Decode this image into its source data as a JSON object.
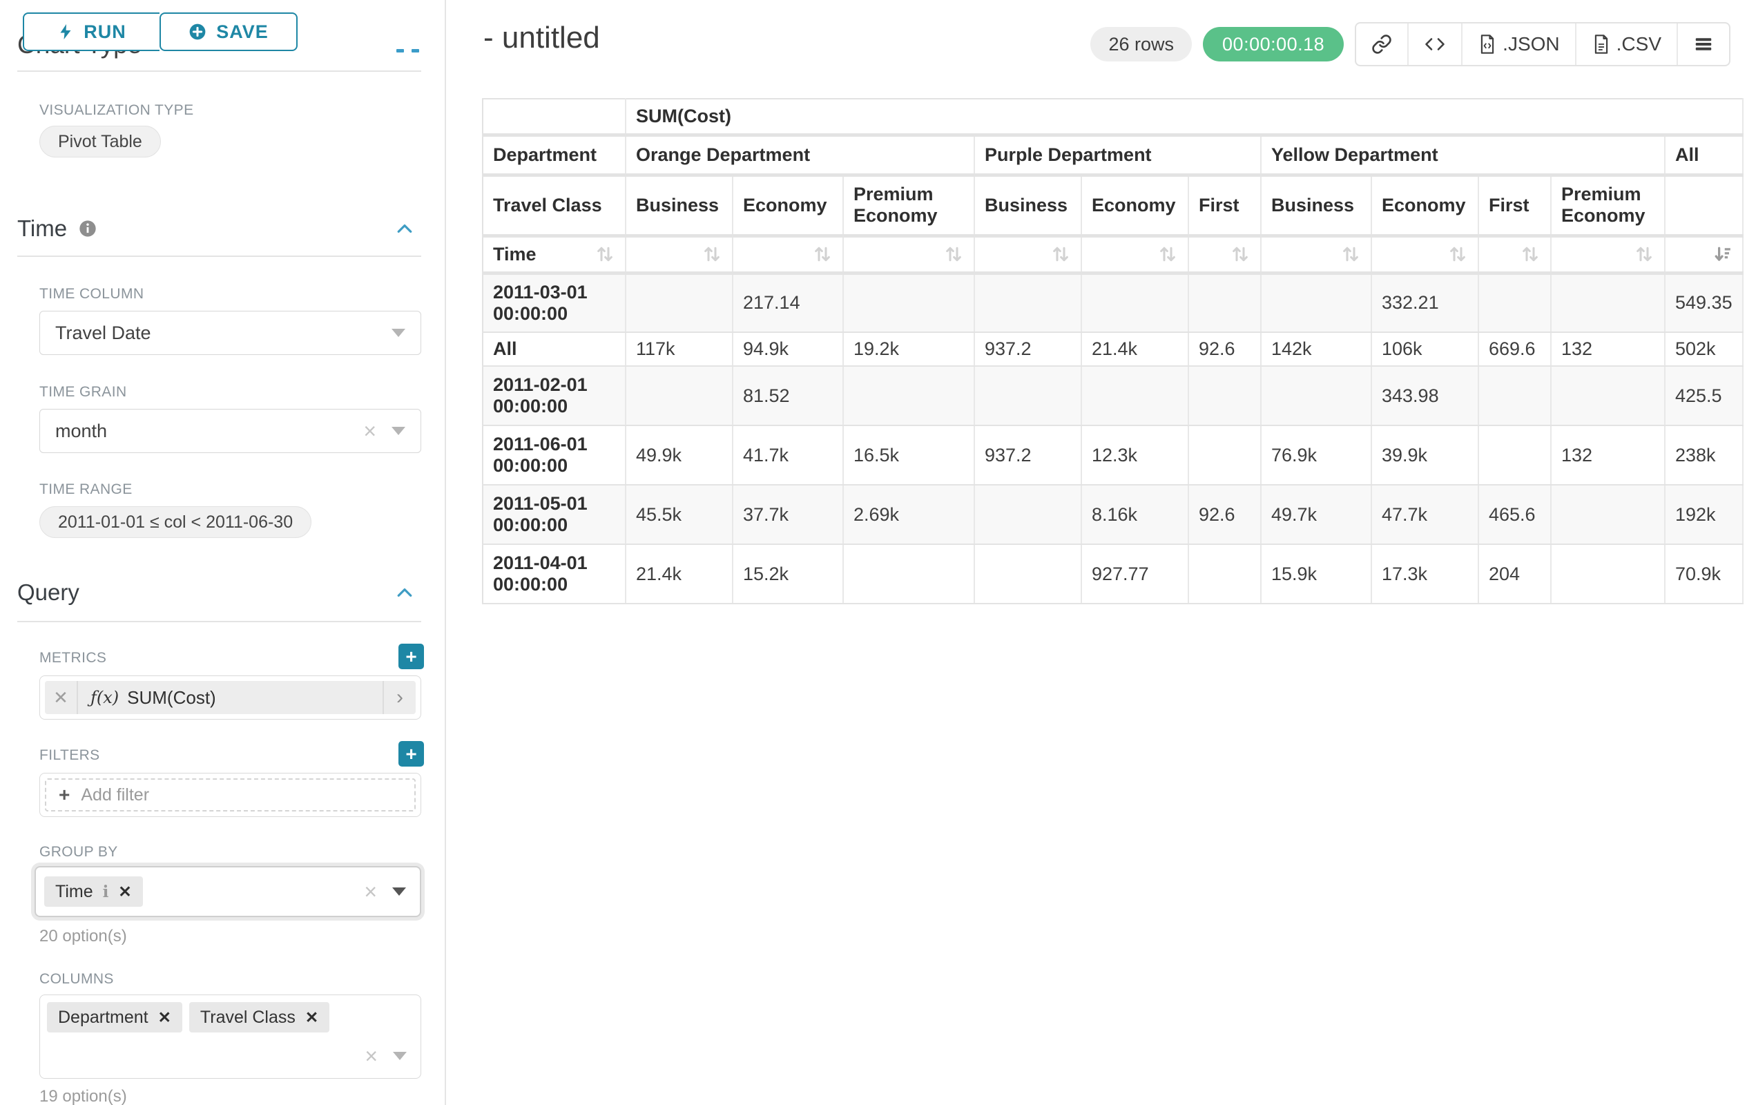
{
  "left_panel": {
    "scrolled_heading": "Chart Type",
    "run_label": "RUN",
    "save_label": "SAVE",
    "viz_type_label": "VISUALIZATION TYPE",
    "viz_type_value": "Pivot Table",
    "time": {
      "title": "Time",
      "time_column_label": "TIME COLUMN",
      "time_column_value": "Travel Date",
      "time_grain_label": "TIME GRAIN",
      "time_grain_value": "month",
      "time_range_label": "TIME RANGE",
      "time_range_value": "2011-01-01 ≤ col < 2011-06-30"
    },
    "query": {
      "title": "Query",
      "metrics_label": "METRICS",
      "metric_fx": "ƒ(x)",
      "metric_value": "SUM(Cost)",
      "filters_label": "FILTERS",
      "add_filter_label": "Add filter",
      "group_by_label": "GROUP BY",
      "group_by_tags": [
        "Time"
      ],
      "group_by_hint": "20 option(s)",
      "columns_label": "COLUMNS",
      "columns_tags": [
        "Department",
        "Travel Class"
      ],
      "columns_hint": "19 option(s)"
    }
  },
  "header": {
    "title": "- untitled",
    "row_count": "26 rows",
    "timer": "00:00:00.18",
    "json_label": ".JSON",
    "csv_label": ".CSV"
  },
  "pivot": {
    "metric_header": "SUM(Cost)",
    "corner_row1": "Department",
    "corner_row2": "Travel Class",
    "corner_sort": "Time",
    "groups": [
      {
        "name": "Orange Department",
        "columns": [
          "Business",
          "Economy",
          "Premium Economy"
        ]
      },
      {
        "name": "Purple Department",
        "columns": [
          "Business",
          "Economy",
          "First"
        ]
      },
      {
        "name": "Yellow Department",
        "columns": [
          "Business",
          "Economy",
          "First",
          "Premium Economy"
        ]
      },
      {
        "name": "All",
        "columns": [
          ""
        ]
      }
    ],
    "rows": [
      {
        "label": "2011-03-01 00:00:00",
        "values": [
          "",
          "217.14",
          "",
          "",
          "",
          "",
          "",
          "332.21",
          "",
          "",
          "549.35"
        ]
      },
      {
        "label": "All",
        "values": [
          "117k",
          "94.9k",
          "19.2k",
          "937.2",
          "21.4k",
          "92.6",
          "142k",
          "106k",
          "669.6",
          "132",
          "502k"
        ]
      },
      {
        "label": "2011-02-01 00:00:00",
        "values": [
          "",
          "81.52",
          "",
          "",
          "",
          "",
          "",
          "343.98",
          "",
          "",
          "425.5"
        ]
      },
      {
        "label": "2011-06-01 00:00:00",
        "values": [
          "49.9k",
          "41.7k",
          "16.5k",
          "937.2",
          "12.3k",
          "",
          "76.9k",
          "39.9k",
          "",
          "132",
          "238k"
        ]
      },
      {
        "label": "2011-05-01 00:00:00",
        "values": [
          "45.5k",
          "37.7k",
          "2.69k",
          "",
          "8.16k",
          "92.6",
          "49.7k",
          "47.7k",
          "465.6",
          "",
          "192k"
        ]
      },
      {
        "label": "2011-04-01 00:00:00",
        "values": [
          "21.4k",
          "15.2k",
          "",
          "",
          "927.77",
          "",
          "15.9k",
          "17.3k",
          "204",
          "",
          "70.9k"
        ]
      }
    ]
  }
}
